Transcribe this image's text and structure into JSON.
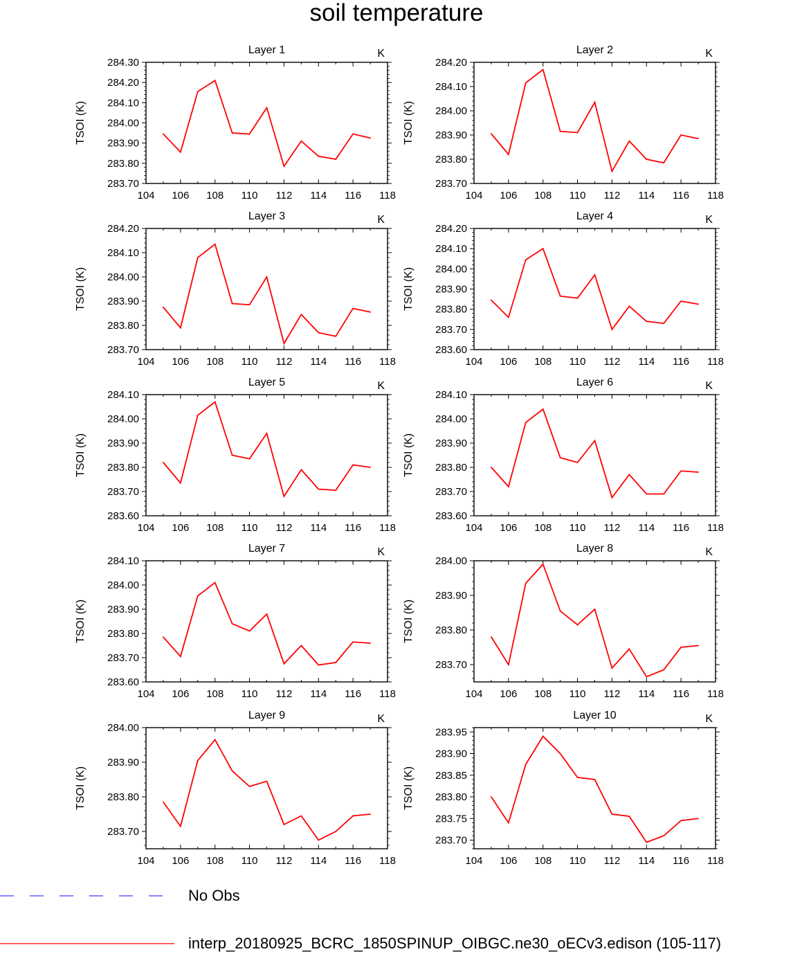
{
  "title": "soil temperature",
  "legend": [
    {
      "label": "No Obs",
      "color": "#3a3aff",
      "style": "dashed"
    },
    {
      "label": "interp_20180925_BCRC_1850SPINUP_OIBGC.ne30_oECv3.edison (105-117)",
      "color": "#ff0000",
      "style": "solid"
    }
  ],
  "chart_data": [
    {
      "type": "line",
      "title": "Layer 1",
      "units": "K",
      "ylabel": "TSOI  (K)",
      "x": [
        105,
        106,
        107,
        108,
        109,
        110,
        111,
        112,
        113,
        114,
        115,
        116,
        117
      ],
      "values": [
        283.945,
        283.855,
        284.155,
        284.21,
        283.95,
        283.945,
        284.075,
        283.785,
        283.91,
        283.835,
        283.82,
        283.945,
        283.925
      ],
      "xlim": [
        104,
        118
      ],
      "ylim": [
        283.7,
        284.3
      ],
      "xticks": [
        "104",
        "106",
        "108",
        "110",
        "112",
        "114",
        "116",
        "118"
      ],
      "yticks": [
        "283.70",
        "283.80",
        "283.90",
        "284.00",
        "284.10",
        "284.20",
        "284.30"
      ]
    },
    {
      "type": "line",
      "title": "Layer 2",
      "units": "K",
      "ylabel": "TSOI  (K)",
      "x": [
        105,
        106,
        107,
        108,
        109,
        110,
        111,
        112,
        113,
        114,
        115,
        116,
        117
      ],
      "values": [
        283.905,
        283.82,
        284.115,
        284.17,
        283.915,
        283.91,
        284.035,
        283.75,
        283.875,
        283.8,
        283.785,
        283.9,
        283.885
      ],
      "xlim": [
        104,
        118
      ],
      "ylim": [
        283.7,
        284.2
      ],
      "xticks": [
        "104",
        "106",
        "108",
        "110",
        "112",
        "114",
        "116",
        "118"
      ],
      "yticks": [
        "283.70",
        "283.80",
        "283.90",
        "284.00",
        "284.10",
        "284.20"
      ]
    },
    {
      "type": "line",
      "title": "Layer 3",
      "units": "K",
      "ylabel": "TSOI  (K)",
      "x": [
        105,
        106,
        107,
        108,
        109,
        110,
        111,
        112,
        113,
        114,
        115,
        116,
        117
      ],
      "values": [
        283.875,
        283.79,
        284.08,
        284.135,
        283.89,
        283.885,
        284.0,
        283.725,
        283.845,
        283.77,
        283.755,
        283.87,
        283.855
      ],
      "xlim": [
        104,
        118
      ],
      "ylim": [
        283.7,
        284.2
      ],
      "xticks": [
        "104",
        "106",
        "108",
        "110",
        "112",
        "114",
        "116",
        "118"
      ],
      "yticks": [
        "283.70",
        "283.80",
        "283.90",
        "284.00",
        "284.10",
        "284.20"
      ]
    },
    {
      "type": "line",
      "title": "Layer 4",
      "units": "K",
      "ylabel": "TSOI  (K)",
      "x": [
        105,
        106,
        107,
        108,
        109,
        110,
        111,
        112,
        113,
        114,
        115,
        116,
        117
      ],
      "values": [
        283.845,
        283.76,
        284.045,
        284.1,
        283.865,
        283.855,
        283.97,
        283.7,
        283.815,
        283.74,
        283.73,
        283.84,
        283.825
      ],
      "xlim": [
        104,
        118
      ],
      "ylim": [
        283.6,
        284.2
      ],
      "xticks": [
        "104",
        "106",
        "108",
        "110",
        "112",
        "114",
        "116",
        "118"
      ],
      "yticks": [
        "283.60",
        "283.70",
        "283.80",
        "283.90",
        "284.00",
        "284.10",
        "284.20"
      ]
    },
    {
      "type": "line",
      "title": "Layer 5",
      "units": "K",
      "ylabel": "TSOI  (K)",
      "x": [
        105,
        106,
        107,
        108,
        109,
        110,
        111,
        112,
        113,
        114,
        115,
        116,
        117
      ],
      "values": [
        283.82,
        283.735,
        284.015,
        284.07,
        283.85,
        283.835,
        283.94,
        283.68,
        283.79,
        283.71,
        283.705,
        283.81,
        283.8
      ],
      "xlim": [
        104,
        118
      ],
      "ylim": [
        283.6,
        284.1
      ],
      "xticks": [
        "104",
        "106",
        "108",
        "110",
        "112",
        "114",
        "116",
        "118"
      ],
      "yticks": [
        "283.60",
        "283.70",
        "283.80",
        "283.90",
        "284.00",
        "284.10"
      ]
    },
    {
      "type": "line",
      "title": "Layer 6",
      "units": "K",
      "ylabel": "TSOI  (K)",
      "x": [
        105,
        106,
        107,
        108,
        109,
        110,
        111,
        112,
        113,
        114,
        115,
        116,
        117
      ],
      "values": [
        283.8,
        283.72,
        283.985,
        284.04,
        283.84,
        283.82,
        283.91,
        283.675,
        283.77,
        283.69,
        283.69,
        283.785,
        283.78
      ],
      "xlim": [
        104,
        118
      ],
      "ylim": [
        283.6,
        284.1
      ],
      "xticks": [
        "104",
        "106",
        "108",
        "110",
        "112",
        "114",
        "116",
        "118"
      ],
      "yticks": [
        "283.60",
        "283.70",
        "283.80",
        "283.90",
        "284.00",
        "284.10"
      ]
    },
    {
      "type": "line",
      "title": "Layer 7",
      "units": "K",
      "ylabel": "TSOI  (K)",
      "x": [
        105,
        106,
        107,
        108,
        109,
        110,
        111,
        112,
        113,
        114,
        115,
        116,
        117
      ],
      "values": [
        283.785,
        283.705,
        283.955,
        284.01,
        283.84,
        283.81,
        283.88,
        283.675,
        283.75,
        283.67,
        283.68,
        283.765,
        283.76
      ],
      "xlim": [
        104,
        118
      ],
      "ylim": [
        283.6,
        284.1
      ],
      "xticks": [
        "104",
        "106",
        "108",
        "110",
        "112",
        "114",
        "116",
        "118"
      ],
      "yticks": [
        "283.60",
        "283.70",
        "283.80",
        "283.90",
        "284.00",
        "284.10"
      ]
    },
    {
      "type": "line",
      "title": "Layer 8",
      "units": "K",
      "ylabel": "TSOI  (K)",
      "x": [
        105,
        106,
        107,
        108,
        109,
        110,
        111,
        112,
        113,
        114,
        115,
        116,
        117
      ],
      "values": [
        283.78,
        283.7,
        283.935,
        283.99,
        283.855,
        283.815,
        283.86,
        283.69,
        283.745,
        283.665,
        283.685,
        283.75,
        283.755
      ],
      "xlim": [
        104,
        118
      ],
      "ylim": [
        283.65,
        284.0
      ],
      "xticks": [
        "104",
        "106",
        "108",
        "110",
        "112",
        "114",
        "116",
        "118"
      ],
      "yticks": [
        "283.70",
        "283.80",
        "283.90",
        "284.00"
      ]
    },
    {
      "type": "line",
      "title": "Layer 9",
      "units": "K",
      "ylabel": "TSOI  (K)",
      "x": [
        105,
        106,
        107,
        108,
        109,
        110,
        111,
        112,
        113,
        114,
        115,
        116,
        117
      ],
      "values": [
        283.785,
        283.715,
        283.905,
        283.965,
        283.875,
        283.83,
        283.845,
        283.72,
        283.745,
        283.675,
        283.7,
        283.745,
        283.75
      ],
      "xlim": [
        104,
        118
      ],
      "ylim": [
        283.65,
        284.0
      ],
      "xticks": [
        "104",
        "106",
        "108",
        "110",
        "112",
        "114",
        "116",
        "118"
      ],
      "yticks": [
        "283.70",
        "283.80",
        "283.90",
        "284.00"
      ]
    },
    {
      "type": "line",
      "title": "Layer 10",
      "units": "K",
      "ylabel": "TSOI  (K)",
      "x": [
        105,
        106,
        107,
        108,
        109,
        110,
        111,
        112,
        113,
        114,
        115,
        116,
        117
      ],
      "values": [
        283.8,
        283.74,
        283.875,
        283.94,
        283.9,
        283.845,
        283.84,
        283.76,
        283.755,
        283.695,
        283.71,
        283.745,
        283.75
      ],
      "xlim": [
        104,
        118
      ],
      "ylim": [
        283.68,
        283.96
      ],
      "xticks": [
        "104",
        "106",
        "108",
        "110",
        "112",
        "114",
        "116",
        "118"
      ],
      "yticks": [
        "283.70",
        "283.75",
        "283.80",
        "283.85",
        "283.90",
        "283.95"
      ]
    }
  ]
}
